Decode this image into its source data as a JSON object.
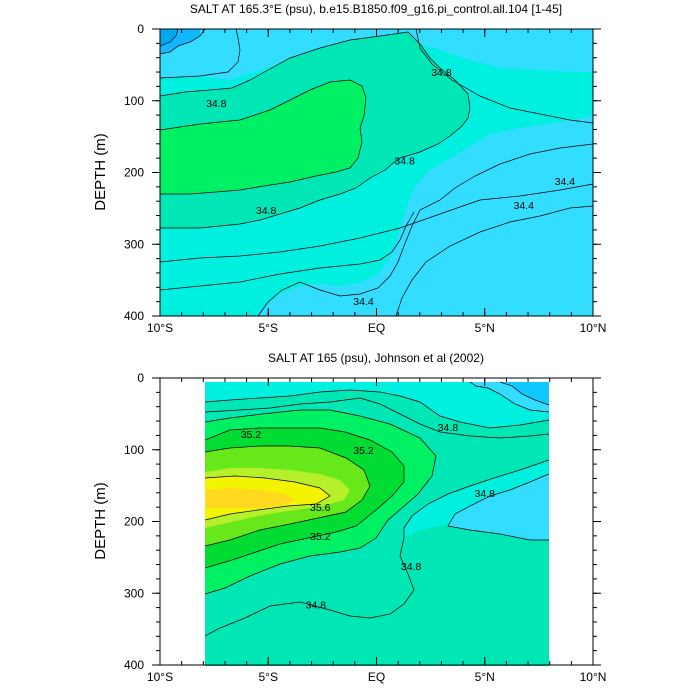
{
  "chart_data": [
    {
      "type": "contour",
      "title": "SALT AT 165.3°E (psu), b.e15.B1850.f09_g16.pi_control.all.104 [1-45]",
      "ylabel": "DEPTH (m)",
      "xlabel": "",
      "x_ticks": [
        "10°S",
        "5°S",
        "EQ",
        "5°N",
        "10°N"
      ],
      "y_ticks": [
        "0",
        "100",
        "200",
        "300",
        "400"
      ],
      "xlim": [
        -10,
        10
      ],
      "ylim": [
        0,
        400
      ],
      "y_inverted": true,
      "levels": [
        34.0,
        34.2,
        34.4,
        34.6,
        34.8,
        35.0
      ],
      "contour_labels": [
        {
          "text": "34.8",
          "x": -7.4,
          "y": 103
        },
        {
          "text": "34.8",
          "x": 3.0,
          "y": 60
        },
        {
          "text": "34.8",
          "x": 1.3,
          "y": 183
        },
        {
          "text": "34.8",
          "x": -5.1,
          "y": 252
        },
        {
          "text": "34.4",
          "x": 6.8,
          "y": 245
        },
        {
          "text": "34.4",
          "x": 8.7,
          "y": 212
        },
        {
          "text": "34.4",
          "x": -0.6,
          "y": 379
        }
      ]
    },
    {
      "type": "contour",
      "title": "SALT AT 165 (psu), Johnson et al (2002)",
      "ylabel": "DEPTH (m)",
      "xlabel": "",
      "x_ticks": [
        "10°S",
        "5°S",
        "EQ",
        "5°N",
        "10°N"
      ],
      "y_ticks": [
        "0",
        "100",
        "200",
        "300",
        "400"
      ],
      "xlim": [
        -10,
        10
      ],
      "ylim": [
        0,
        400
      ],
      "y_inverted": true,
      "data_extent_x": [
        -8,
        8
      ],
      "levels": [
        34.4,
        34.6,
        34.8,
        35.0,
        35.2,
        35.4,
        35.6
      ],
      "contour_labels": [
        {
          "text": "35.2",
          "x": -5.8,
          "y": 78
        },
        {
          "text": "35.2",
          "x": -0.6,
          "y": 100
        },
        {
          "text": "35.6",
          "x": -2.6,
          "y": 180
        },
        {
          "text": "35.2",
          "x": -2.6,
          "y": 220
        },
        {
          "text": "34.8",
          "x": 3.3,
          "y": 68
        },
        {
          "text": "34.8",
          "x": 5.0,
          "y": 160
        },
        {
          "text": "34.8",
          "x": 1.6,
          "y": 262
        },
        {
          "text": "34.8",
          "x": -2.8,
          "y": 316
        }
      ]
    }
  ]
}
